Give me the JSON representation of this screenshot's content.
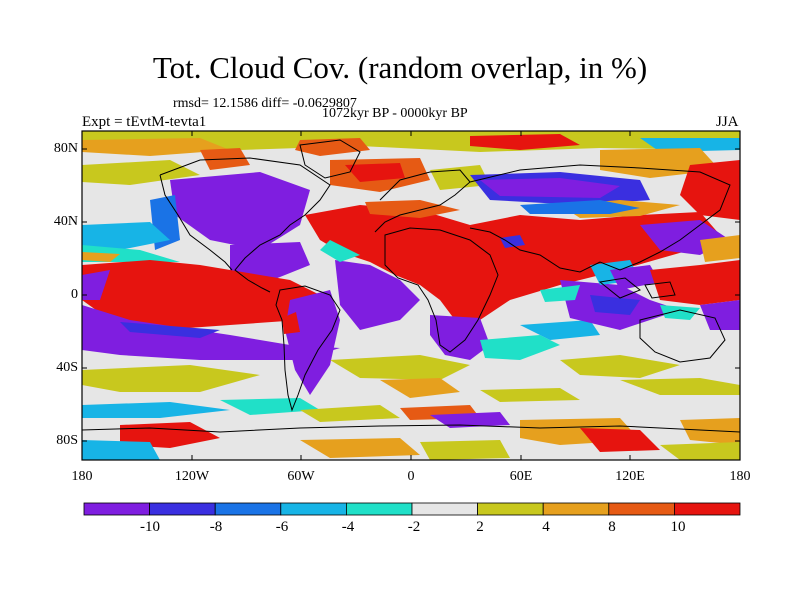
{
  "title": "Tot. Cloud Cov. (random overlap, in %)",
  "stats": "rmsd= 12.1586 diff= -0.0629807",
  "period": "1072kyr BP - 0000kyr BP",
  "experiment": "Expt = tEvtM-tevta1",
  "season": "JJA",
  "lon_ticks": [
    "180",
    "120W",
    "60W",
    "0",
    "60E",
    "120E",
    "180"
  ],
  "lat_ticks": [
    "80N",
    "40N",
    "0",
    "40S",
    "80S"
  ],
  "colorbar": {
    "colors": [
      "#7f1ee0",
      "#3a2fe0",
      "#1a73e6",
      "#17b4e6",
      "#20e0c8",
      "#e6e6e6",
      "#c8c81e",
      "#e6a01e",
      "#e65a14",
      "#e6140f"
    ],
    "labels": [
      "-10",
      "-8",
      "-6",
      "-4",
      "-2",
      "2",
      "4",
      "8",
      "10"
    ]
  },
  "colors": {
    "purple": "#7f1ee0",
    "blue_dark": "#3a2fe0",
    "blue": "#1a73e6",
    "cyan": "#17b4e6",
    "teal": "#20e0c8",
    "gray": "#e6e6e6",
    "olive": "#c8c81e",
    "orange": "#e6a01e",
    "red_orange": "#e65a14",
    "red": "#e6140f"
  }
}
